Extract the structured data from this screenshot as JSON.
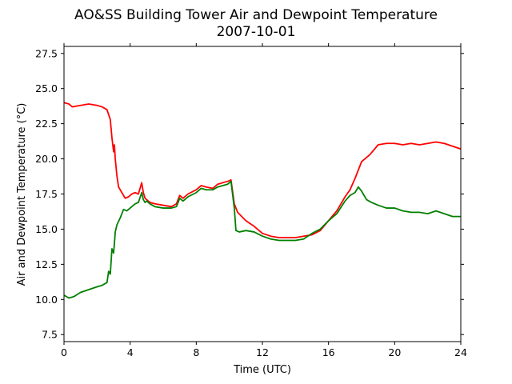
{
  "chart_data": {
    "type": "line",
    "title": "AO&SS Building Tower Air and Dewpoint Temperature",
    "subtitle": "2007-10-01",
    "xlabel": "Time (UTC)",
    "ylabel": "Air and Dewpoint Temperature (°C)",
    "xlim": [
      0,
      24
    ],
    "ylim": [
      7.0,
      28.0
    ],
    "x_ticks": [
      0,
      4,
      8,
      12,
      16,
      20,
      24
    ],
    "x_tick_labels": [
      "0",
      "4",
      "8",
      "12",
      "16",
      "20",
      "24"
    ],
    "y_ticks": [
      7.5,
      10.0,
      12.5,
      15.0,
      17.5,
      20.0,
      22.5,
      25.0,
      27.5
    ],
    "y_tick_labels": [
      "7.5",
      "10.0",
      "12.5",
      "15.0",
      "17.5",
      "20.0",
      "22.5",
      "25.0",
      "27.5"
    ],
    "grid": false,
    "legend": "none",
    "series": [
      {
        "color": "#ff0000",
        "x": [
          0,
          0.3,
          0.5,
          1,
          1.5,
          2,
          2.3,
          2.6,
          2.8,
          2.9,
          3.0,
          3.05,
          3.1,
          3.2,
          3.3,
          3.5,
          3.7,
          3.9,
          4.1,
          4.3,
          4.5,
          4.7,
          4.8,
          4.9,
          5.0,
          5.2,
          5.5,
          6.0,
          6.5,
          6.8,
          7.0,
          7.2,
          7.5,
          8.0,
          8.3,
          8.6,
          9.0,
          9.3,
          9.6,
          9.9,
          10.1,
          10.3,
          10.5,
          11.0,
          11.5,
          12.0,
          12.5,
          13.0,
          13.5,
          14.0,
          14.5,
          15.0,
          15.5,
          16.0,
          16.5,
          17.0,
          17.3,
          17.6,
          17.8,
          18.0,
          18.5,
          19.0,
          19.5,
          20.0,
          20.5,
          21.0,
          21.5,
          22.0,
          22.5,
          23.0,
          23.5,
          24.0
        ],
        "y": [
          24.0,
          23.9,
          23.7,
          23.8,
          23.9,
          23.8,
          23.7,
          23.5,
          22.8,
          21.5,
          20.5,
          21.0,
          20.0,
          18.8,
          18.0,
          17.6,
          17.2,
          17.3,
          17.5,
          17.6,
          17.5,
          18.3,
          17.6,
          17.2,
          17.1,
          16.9,
          16.8,
          16.7,
          16.6,
          16.8,
          17.4,
          17.2,
          17.5,
          17.8,
          18.1,
          18.0,
          17.9,
          18.2,
          18.3,
          18.4,
          18.5,
          16.8,
          16.2,
          15.6,
          15.2,
          14.7,
          14.5,
          14.4,
          14.4,
          14.4,
          14.5,
          14.6,
          14.9,
          15.6,
          16.3,
          17.3,
          17.8,
          18.6,
          19.2,
          19.8,
          20.3,
          21.0,
          21.1,
          21.1,
          21.0,
          21.1,
          21.0,
          21.1,
          21.2,
          21.1,
          20.9,
          20.7
        ]
      },
      {
        "color": "#008000",
        "x": [
          0,
          0.3,
          0.6,
          1,
          1.5,
          2,
          2.3,
          2.6,
          2.7,
          2.8,
          2.9,
          3.0,
          3.05,
          3.1,
          3.2,
          3.4,
          3.6,
          3.8,
          4.0,
          4.3,
          4.5,
          4.7,
          4.8,
          4.9,
          5.0,
          5.2,
          5.5,
          6.0,
          6.5,
          6.8,
          7.0,
          7.2,
          7.5,
          8.0,
          8.3,
          8.6,
          9.0,
          9.3,
          9.6,
          9.9,
          10.1,
          10.3,
          10.4,
          10.6,
          11.0,
          11.5,
          12.0,
          12.5,
          13.0,
          13.5,
          14.0,
          14.5,
          15.0,
          15.5,
          16.0,
          16.5,
          17.0,
          17.3,
          17.6,
          17.8,
          18.0,
          18.3,
          18.6,
          19.0,
          19.5,
          20.0,
          20.5,
          21.0,
          21.5,
          22.0,
          22.5,
          23.0,
          23.5,
          24.0
        ],
        "y": [
          10.3,
          10.1,
          10.2,
          10.5,
          10.7,
          10.9,
          11.0,
          11.2,
          12.0,
          11.8,
          13.6,
          13.3,
          14.0,
          14.8,
          15.3,
          15.8,
          16.4,
          16.3,
          16.5,
          16.8,
          16.9,
          17.6,
          17.1,
          16.9,
          17.0,
          16.8,
          16.6,
          16.5,
          16.5,
          16.6,
          17.2,
          17.0,
          17.3,
          17.6,
          17.9,
          17.8,
          17.8,
          18.0,
          18.1,
          18.2,
          18.4,
          16.5,
          14.9,
          14.8,
          14.9,
          14.8,
          14.5,
          14.3,
          14.2,
          14.2,
          14.2,
          14.3,
          14.7,
          15.0,
          15.6,
          16.1,
          17.0,
          17.4,
          17.6,
          18.0,
          17.7,
          17.1,
          16.9,
          16.7,
          16.5,
          16.5,
          16.3,
          16.2,
          16.2,
          16.1,
          16.3,
          16.1,
          15.9,
          15.9
        ]
      }
    ]
  }
}
